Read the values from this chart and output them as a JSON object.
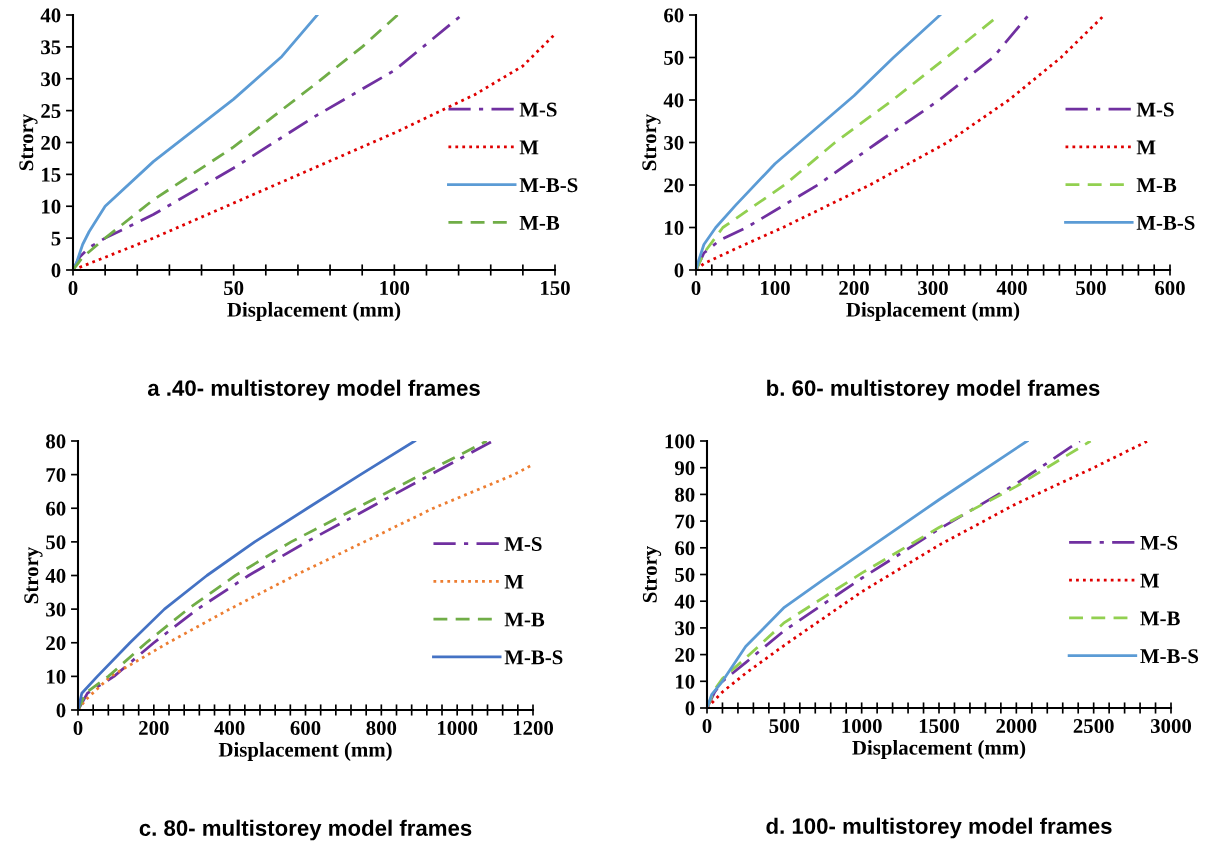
{
  "chart_data": [
    {
      "type": "line",
      "title": "a .40- multistorey model frames",
      "xlabel": "Displacement (mm)",
      "ylabel": "Strory",
      "xlim": [
        0,
        150
      ],
      "ylim": [
        0,
        40
      ],
      "xticks": [
        0,
        {
          "value": 10,
          "label": null
        },
        {
          "value": 20,
          "label": null
        },
        {
          "value": 30,
          "label": null
        },
        {
          "value": 40,
          "label": null
        },
        50,
        {
          "value": 60,
          "label": null
        },
        {
          "value": 70,
          "label": null
        },
        {
          "value": 80,
          "label": null
        },
        {
          "value": 90,
          "label": null
        },
        100,
        {
          "value": 110,
          "label": null
        },
        {
          "value": 120,
          "label": null
        },
        {
          "value": 130,
          "label": null
        },
        {
          "value": 140,
          "label": null
        },
        150
      ],
      "yticks": [
        0,
        5,
        10,
        15,
        20,
        25,
        30,
        35,
        40
      ],
      "legend": "right",
      "grid": false,
      "marker": "none",
      "series": [
        {
          "name": "M-S",
          "color": "#7030a0",
          "line_style": "dashdot",
          "x": [
            0,
            2,
            5,
            10,
            25,
            50,
            75,
            100,
            121
          ],
          "values": [
            0,
            2,
            3.5,
            5,
            8.7,
            16,
            24,
            31.3,
            40
          ]
        },
        {
          "name": "M",
          "color": "#e00000",
          "line_style": "dotted",
          "x": [
            0,
            10,
            25,
            50,
            75,
            100,
            125,
            140,
            150
          ],
          "values": [
            0,
            2,
            5,
            10.5,
            16,
            21.5,
            27.5,
            32,
            37
          ]
        },
        {
          "name": "M-B-S",
          "color": "#5b9bd5",
          "line_style": "solid",
          "x": [
            0,
            1,
            3,
            5,
            10,
            25,
            50,
            65,
            76
          ],
          "values": [
            0,
            1,
            4,
            6,
            10,
            17,
            26.8,
            33.5,
            40
          ]
        },
        {
          "name": "M-B",
          "color": "#70ad47",
          "line_style": "dashed",
          "x": [
            0,
            3,
            10,
            25,
            50,
            75,
            90,
            101
          ],
          "values": [
            0,
            2,
            5,
            11,
            19.3,
            29,
            35,
            40
          ]
        }
      ]
    },
    {
      "type": "line",
      "title": "b. 60- multistorey model frames",
      "xlabel": "Displacement (mm)",
      "ylabel": "Strory",
      "xlim": [
        0,
        600
      ],
      "ylim": [
        0,
        60
      ],
      "xticks": [
        0,
        {
          "value": 20,
          "label": null
        },
        {
          "value": 40,
          "label": null
        },
        {
          "value": 60,
          "label": null
        },
        {
          "value": 80,
          "label": null
        },
        100,
        {
          "value": 120,
          "label": null
        },
        {
          "value": 140,
          "label": null
        },
        {
          "value": 160,
          "label": null
        },
        {
          "value": 180,
          "label": null
        },
        200,
        {
          "value": 220,
          "label": null
        },
        {
          "value": 240,
          "label": null
        },
        {
          "value": 260,
          "label": null
        },
        {
          "value": 280,
          "label": null
        },
        300,
        {
          "value": 320,
          "label": null
        },
        {
          "value": 340,
          "label": null
        },
        {
          "value": 360,
          "label": null
        },
        {
          "value": 380,
          "label": null
        },
        400,
        {
          "value": 420,
          "label": null
        },
        {
          "value": 440,
          "label": null
        },
        {
          "value": 460,
          "label": null
        },
        {
          "value": 480,
          "label": null
        },
        500,
        {
          "value": 520,
          "label": null
        },
        {
          "value": 540,
          "label": null
        },
        {
          "value": 560,
          "label": null
        },
        {
          "value": 580,
          "label": null
        },
        600
      ],
      "yticks": [
        0,
        10,
        20,
        30,
        40,
        50,
        60
      ],
      "legend": "right",
      "grid": false,
      "marker": "none",
      "series": [
        {
          "name": "M-S",
          "color": "#7030a0",
          "line_style": "dashdot",
          "x": [
            0,
            10,
            30,
            64,
            154,
            230,
            308,
            376,
            421
          ],
          "values": [
            0,
            4,
            7,
            10,
            20,
            30,
            40,
            50,
            60
          ]
        },
        {
          "name": "M",
          "color": "#e00000",
          "line_style": "dotted",
          "x": [
            0,
            10,
            50,
            110,
            220,
            318,
            396,
            462,
            517
          ],
          "values": [
            0,
            1.5,
            5,
            10,
            20,
            30,
            40,
            50,
            60
          ]
        },
        {
          "name": "M-B",
          "color": "#92d050",
          "line_style": "dashed",
          "x": [
            0,
            10,
            34,
            112,
            176,
            249,
            317,
            384
          ],
          "values": [
            0,
            4,
            10,
            20,
            30,
            40,
            50,
            60
          ]
        },
        {
          "name": "M-B-S",
          "color": "#5b9bd5",
          "line_style": "solid",
          "x": [
            0,
            3,
            10,
            25,
            50,
            100,
            150,
            200,
            250,
            309
          ],
          "values": [
            0,
            2,
            6,
            10,
            15.2,
            25,
            33,
            41,
            50,
            60
          ]
        }
      ]
    },
    {
      "type": "line",
      "title": "c. 80- multistorey model frames",
      "xlabel": "Displacement (mm)",
      "ylabel": "Strory",
      "xlim": [
        0,
        1200
      ],
      "ylim": [
        0,
        80
      ],
      "xticks": [
        0,
        {
          "value": 40,
          "label": null
        },
        {
          "value": 80,
          "label": null
        },
        {
          "value": 120,
          "label": null
        },
        {
          "value": 160,
          "label": null
        },
        200,
        {
          "value": 240,
          "label": null
        },
        {
          "value": 280,
          "label": null
        },
        {
          "value": 320,
          "label": null
        },
        {
          "value": 360,
          "label": null
        },
        400,
        {
          "value": 440,
          "label": null
        },
        {
          "value": 480,
          "label": null
        },
        {
          "value": 520,
          "label": null
        },
        {
          "value": 560,
          "label": null
        },
        600,
        {
          "value": 640,
          "label": null
        },
        {
          "value": 680,
          "label": null
        },
        {
          "value": 720,
          "label": null
        },
        {
          "value": 760,
          "label": null
        },
        800,
        {
          "value": 840,
          "label": null
        },
        {
          "value": 880,
          "label": null
        },
        {
          "value": 920,
          "label": null
        },
        {
          "value": 960,
          "label": null
        },
        1000,
        {
          "value": 1040,
          "label": null
        },
        {
          "value": 1080,
          "label": null
        },
        {
          "value": 1120,
          "label": null
        },
        {
          "value": 1160,
          "label": null
        },
        1200
      ],
      "yticks": [
        0,
        10,
        20,
        30,
        40,
        50,
        60,
        70,
        80
      ],
      "legend": "right",
      "grid": false,
      "marker": "none",
      "series": [
        {
          "name": "M-S",
          "color": "#7030a0",
          "line_style": "dashdot",
          "x": [
            0,
            25,
            95,
            200,
            315,
            450,
            603,
            767,
            930,
            1094
          ],
          "values": [
            0,
            5,
            10,
            20,
            30,
            40,
            50,
            60,
            70,
            80
          ]
        },
        {
          "name": "M",
          "color": "#ed7d31",
          "line_style": "dotted",
          "x": [
            0,
            20,
            86,
            238,
            400,
            572,
            755,
            937,
            1150,
            1200
          ],
          "values": [
            0,
            3,
            10,
            20,
            30,
            40,
            50,
            60,
            70,
            73
          ]
        },
        {
          "name": "M-B",
          "color": "#70ad47",
          "line_style": "dashed",
          "x": [
            0,
            20,
            80,
            180,
            290,
            415,
            562,
            734,
            906,
            1078
          ],
          "values": [
            0,
            5,
            10,
            20,
            30,
            40,
            50,
            60,
            70,
            80
          ]
        },
        {
          "name": "M-B-S",
          "color": "#4472c4",
          "line_style": "solid",
          "x": [
            0,
            10,
            51,
            137,
            228,
            340,
            466,
            605,
            745,
            888
          ],
          "values": [
            0,
            5,
            10,
            20,
            30,
            40,
            50,
            60,
            70,
            80
          ]
        }
      ]
    },
    {
      "type": "line",
      "title": "d. 100- multistorey model frames",
      "xlabel": "Displacement (mm)",
      "ylabel": "Strory",
      "xlim": [
        0,
        3000
      ],
      "ylim": [
        0,
        100
      ],
      "xticks": [
        0,
        {
          "value": 100,
          "label": null
        },
        {
          "value": 200,
          "label": null
        },
        {
          "value": 300,
          "label": null
        },
        {
          "value": 400,
          "label": null
        },
        500,
        {
          "value": 600,
          "label": null
        },
        {
          "value": 700,
          "label": null
        },
        {
          "value": 800,
          "label": null
        },
        {
          "value": 900,
          "label": null
        },
        1000,
        {
          "value": 1100,
          "label": null
        },
        {
          "value": 1200,
          "label": null
        },
        {
          "value": 1300,
          "label": null
        },
        {
          "value": 1400,
          "label": null
        },
        1500,
        {
          "value": 1600,
          "label": null
        },
        {
          "value": 1700,
          "label": null
        },
        {
          "value": 1800,
          "label": null
        },
        {
          "value": 1900,
          "label": null
        },
        2000,
        {
          "value": 2100,
          "label": null
        },
        {
          "value": 2200,
          "label": null
        },
        {
          "value": 2300,
          "label": null
        },
        {
          "value": 2400,
          "label": null
        },
        2500,
        {
          "value": 2600,
          "label": null
        },
        {
          "value": 2700,
          "label": null
        },
        {
          "value": 2800,
          "label": null
        },
        {
          "value": 2900,
          "label": null
        },
        3000
      ],
      "yticks": [
        0,
        10,
        20,
        30,
        40,
        50,
        60,
        70,
        80,
        90,
        100
      ],
      "legend": "right",
      "grid": false,
      "marker": "none",
      "series": [
        {
          "name": "M-S",
          "color": "#7030a0",
          "line_style": "dashdot",
          "x": [
            0,
            50,
            100,
            250,
            500,
            1000,
            1500,
            2000,
            2410
          ],
          "values": [
            0,
            6,
            10,
            17,
            29,
            48.6,
            67,
            84,
            100
          ]
        },
        {
          "name": "M",
          "color": "#e00000",
          "line_style": "dotted",
          "x": [
            0,
            50,
            100,
            250,
            500,
            1000,
            1500,
            2000,
            2500,
            2850
          ],
          "values": [
            0,
            3,
            6,
            13,
            23.5,
            43.5,
            61,
            76.5,
            90,
            100
          ]
        },
        {
          "name": "M-B",
          "color": "#92d050",
          "line_style": "dashed",
          "x": [
            0,
            50,
            100,
            250,
            500,
            1000,
            1500,
            2000,
            2480
          ],
          "values": [
            0,
            7,
            11,
            18.7,
            32,
            50.5,
            67.6,
            83,
            100
          ]
        },
        {
          "name": "M-B-S",
          "color": "#5b9bd5",
          "line_style": "solid",
          "x": [
            0,
            30,
            100,
            250,
            500,
            750,
            1000,
            1500,
            2070
          ],
          "values": [
            0,
            5,
            10,
            23,
            37.7,
            48,
            58,
            78,
            100
          ]
        }
      ]
    }
  ]
}
